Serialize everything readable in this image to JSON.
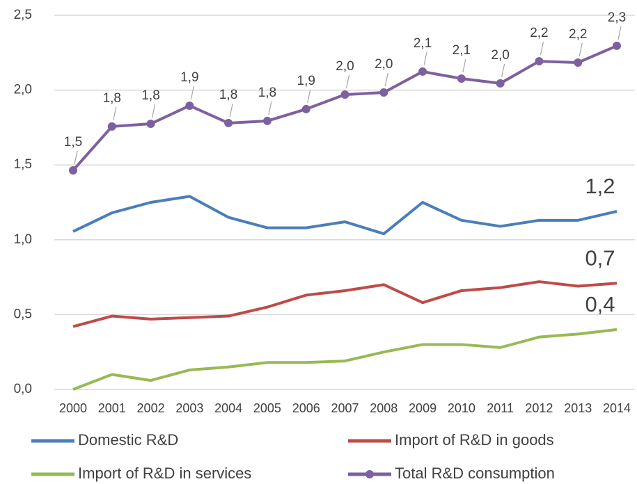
{
  "chart_data": {
    "type": "line",
    "categories": [
      "2000",
      "2001",
      "2002",
      "2003",
      "2004",
      "2005",
      "2006",
      "2007",
      "2008",
      "2009",
      "2010",
      "2011",
      "2012",
      "2013",
      "2014"
    ],
    "ylim": [
      0,
      2.5
    ],
    "yticks": [
      {
        "value": 0,
        "label": "0,0"
      },
      {
        "value": 0.5,
        "label": "0,5"
      },
      {
        "value": 1,
        "label": "1,0"
      },
      {
        "value": 1.5,
        "label": "1,5"
      },
      {
        "value": 2,
        "label": "2,0"
      },
      {
        "value": 2.5,
        "label": "2,5"
      }
    ],
    "grid": true,
    "legend": "bottom",
    "series": [
      {
        "name": "Domestic R&D",
        "color": "#4a7ebb",
        "values": [
          1.055,
          1.18,
          1.25,
          1.29,
          1.15,
          1.08,
          1.08,
          1.12,
          1.04,
          1.25,
          1.13,
          1.09,
          1.13,
          1.13,
          1.19
        ],
        "value_labels": [
          null,
          null,
          null,
          null,
          null,
          null,
          null,
          null,
          null,
          null,
          null,
          null,
          null,
          null,
          "1,2"
        ]
      },
      {
        "name": "Import of R&D in goods",
        "color": "#be4b48",
        "values": [
          0.42,
          0.49,
          0.47,
          0.48,
          0.49,
          0.55,
          0.63,
          0.66,
          0.7,
          0.58,
          0.66,
          0.68,
          0.72,
          0.69,
          0.71
        ],
        "value_labels": [
          null,
          null,
          null,
          null,
          null,
          null,
          null,
          null,
          null,
          null,
          null,
          null,
          null,
          null,
          "0,7"
        ]
      },
      {
        "name": "Import of R&D in services",
        "color": "#98b954",
        "values": [
          0.0,
          0.1,
          0.06,
          0.13,
          0.15,
          0.18,
          0.18,
          0.19,
          0.25,
          0.3,
          0.3,
          0.28,
          0.35,
          0.37,
          0.4
        ],
        "value_labels": [
          null,
          null,
          null,
          null,
          null,
          null,
          null,
          null,
          null,
          null,
          null,
          null,
          null,
          null,
          "0,4"
        ]
      },
      {
        "name": "Total R&D consumption",
        "color": "#7d60a0",
        "marker": "circle",
        "values": [
          1.464,
          1.757,
          1.775,
          1.896,
          1.78,
          1.794,
          1.873,
          1.97,
          1.984,
          2.124,
          2.077,
          2.045,
          2.193,
          2.184,
          2.296
        ],
        "value_labels": [
          "1,5",
          "1,8",
          "1,8",
          "1,9",
          "1,8",
          "1,8",
          "1,9",
          "2,0",
          "2,0",
          "2,1",
          "2,1",
          "2,0",
          "2,2",
          "2,2",
          "2,3"
        ]
      }
    ]
  }
}
